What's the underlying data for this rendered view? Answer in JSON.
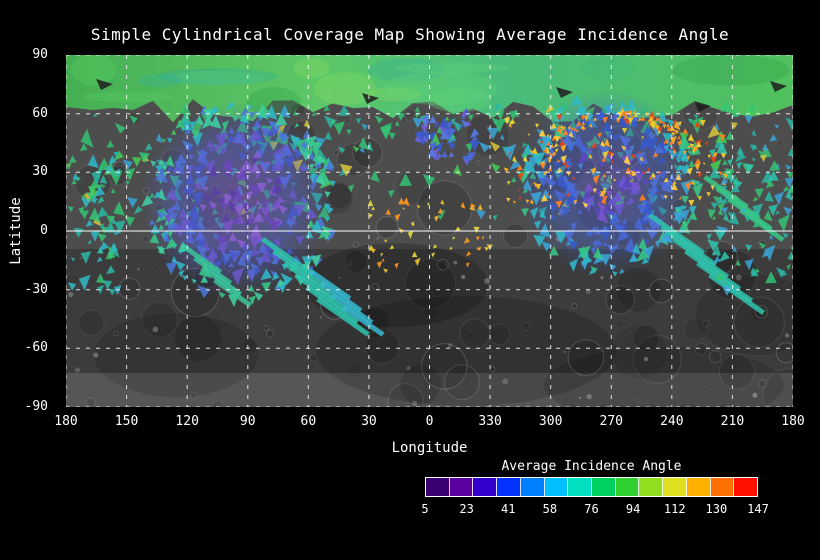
{
  "title": "Simple Cylindrical Coverage Map Showing Average Incidence Angle",
  "chart_data": {
    "type": "heatmap",
    "title": "Simple Cylindrical Coverage Map Showing Average Incidence Angle",
    "projection": "simple cylindrical",
    "basemap": "grayscale cratered planetary surface mosaic",
    "xlabel": "Longitude",
    "ylabel": "Latitude",
    "x_ticks": [
      "180",
      "150",
      "120",
      "90",
      "60",
      "30",
      "0",
      "330",
      "300",
      "270",
      "240",
      "210",
      "180"
    ],
    "y_ticks": [
      "90",
      "60",
      "30",
      "0",
      "-30",
      "-60",
      "-90"
    ],
    "lat_range": [
      -90,
      90
    ],
    "grid_spacing_degrees": 30,
    "grid": "white dashed graticule, solid line at equator",
    "value_name": "Average Incidence Angle",
    "value_range": [
      5,
      147
    ],
    "value_units": "degrees",
    "coverage_regions": [
      {
        "region": "north polar band",
        "lat_range": [
          55,
          90
        ],
        "lon_range": "all longitudes",
        "dominant_value": "58-94 (green)"
      },
      {
        "region": "upper mid-latitude facet band",
        "lat_range": [
          30,
          60
        ],
        "lon_range": "most longitudes, gaps near 30-0",
        "dominant_value": "41-94 (cyan-green facets, sparse yellow)"
      },
      {
        "region": "western lobe",
        "lat_range": [
          -30,
          55
        ],
        "lon_range": [
          60,
          140
        ],
        "dominant_value": "5-41 (purple-blue core, cyan-green fringe)"
      },
      {
        "region": "eastern lobe",
        "lat_range": [
          -25,
          55
        ],
        "lon_range": [
          250,
          320
        ],
        "dominant_value": "5-58 (blue-purple) with 94-147 (yellow-orange-red) speckles"
      },
      {
        "region": "southern hemisphere",
        "lat_range": [
          -90,
          -30
        ],
        "lon_range": "all longitudes",
        "dominant_value": "no coverage (grayscale basemap visible)"
      }
    ]
  },
  "colorbar": {
    "title": "Average Incidence Angle",
    "ticks": [
      "5",
      "23",
      "41",
      "58",
      "76",
      "94",
      "112",
      "130",
      "147"
    ],
    "colors": [
      "#3a006f",
      "#5a00a0",
      "#3300cc",
      "#0033ff",
      "#0080ff",
      "#00c0ff",
      "#00e0c0",
      "#00d060",
      "#30d030",
      "#90e020",
      "#e0e020",
      "#ffb000",
      "#ff7000",
      "#ff1000"
    ]
  }
}
